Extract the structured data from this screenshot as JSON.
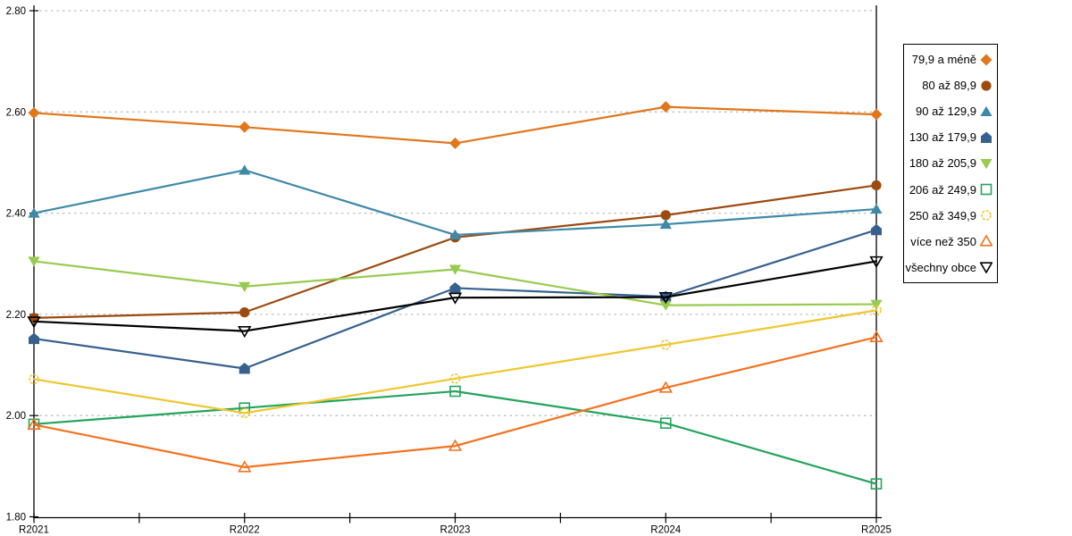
{
  "chart_data": {
    "type": "line",
    "title": "",
    "xlabel": "",
    "ylabel": "",
    "x_categories": [
      "R2021",
      "R2022",
      "R2023",
      "R2024",
      "R2025"
    ],
    "ylim": [
      1.8,
      2.8
    ],
    "y_tick_labels": [
      "2.80",
      "2.60",
      "2.40",
      "2.20",
      "2.00",
      "1.80"
    ],
    "y_tick_values": [
      2.8,
      2.6,
      2.4,
      2.2,
      2.0,
      1.8
    ],
    "grid": "horizontal-dotted",
    "grid_color": "#bdbdbd",
    "axis_color": "#000000",
    "legend_position": "right-outside",
    "series": [
      {
        "name": "79,9 a méně",
        "marker": "diamond",
        "color": "#e2761b",
        "values": [
          2.598,
          2.57,
          2.538,
          2.61,
          2.595
        ]
      },
      {
        "name": "80 až 89,9",
        "marker": "circle",
        "color": "#9c4a0f",
        "values": [
          2.193,
          2.204,
          2.352,
          2.396,
          2.455
        ]
      },
      {
        "name": "90 až 129,9",
        "marker": "triangle-up",
        "color": "#3e89a8",
        "values": [
          2.4,
          2.485,
          2.357,
          2.378,
          2.408
        ]
      },
      {
        "name": "130 až 179,9",
        "marker": "pentagon",
        "color": "#36618e",
        "values": [
          2.152,
          2.093,
          2.252,
          2.235,
          2.367
        ]
      },
      {
        "name": "180 až 205,9",
        "marker": "triangle-down",
        "color": "#97cb4f",
        "values": [
          2.305,
          2.255,
          2.289,
          2.218,
          2.22
        ]
      },
      {
        "name": "206 až 249,9",
        "marker": "square-open",
        "color": "#23a45c",
        "values": [
          1.983,
          2.015,
          2.048,
          1.985,
          1.865
        ]
      },
      {
        "name": "250 až 349,9",
        "marker": "circle-open",
        "color": "#f2c52f",
        "values": [
          2.072,
          2.005,
          2.073,
          2.14,
          2.208
        ]
      },
      {
        "name": "více než 350",
        "marker": "triangle-up-open",
        "color": "#f4711d",
        "values": [
          1.982,
          1.898,
          1.94,
          2.055,
          2.155
        ]
      },
      {
        "name": "všechny obce",
        "marker": "triangle-down-open",
        "color": "#000000",
        "values": [
          2.186,
          2.167,
          2.233,
          2.234,
          2.305
        ]
      }
    ]
  }
}
